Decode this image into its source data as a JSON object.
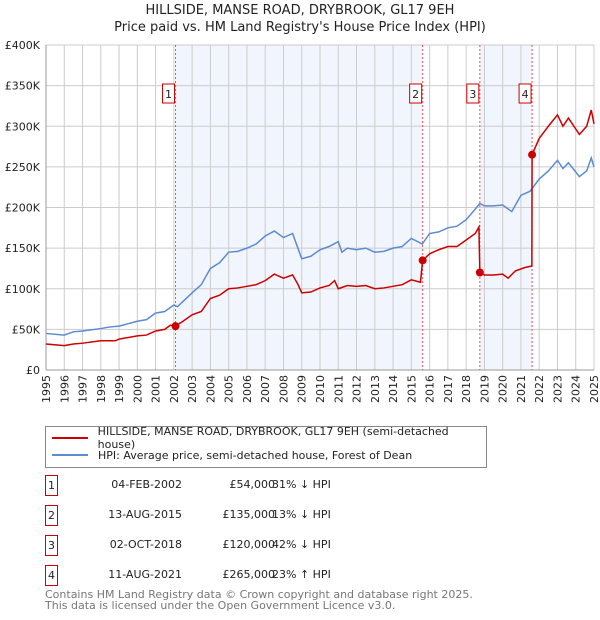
{
  "title": "HILLSIDE, MANSE ROAD, DRYBROOK, GL17 9EH",
  "subtitle": "Price paid vs. HM Land Registry's House Price Index (HPI)",
  "chart_data": {
    "type": "line",
    "xlim": [
      1995,
      2025
    ],
    "ylim": [
      0,
      400000
    ],
    "yticks": [
      0,
      50000,
      100000,
      150000,
      200000,
      250000,
      300000,
      350000,
      400000
    ],
    "ytick_labels": [
      "£0",
      "£50K",
      "£100K",
      "£150K",
      "£200K",
      "£250K",
      "£300K",
      "£350K",
      "£400K"
    ],
    "xticks": [
      "1995",
      "1996",
      "1997",
      "1998",
      "1999",
      "2000",
      "2001",
      "2002",
      "2003",
      "2004",
      "2005",
      "2006",
      "2007",
      "2008",
      "2009",
      "2010",
      "2011",
      "2012",
      "2013",
      "2014",
      "2015",
      "2016",
      "2017",
      "2018",
      "2019",
      "2020",
      "2021",
      "2022",
      "2023",
      "2024",
      "2025"
    ],
    "grid": true,
    "shaded_ranges": [
      [
        2002.09,
        2015.62
      ],
      [
        2018.75,
        2021.61
      ]
    ],
    "series": [
      {
        "name": "HILLSIDE, MANSE ROAD, DRYBROOK, GL17 9EH (semi-detached house)",
        "color": "#cc0000",
        "points": [
          [
            1995,
            32000
          ],
          [
            1996,
            30000
          ],
          [
            1996.5,
            32000
          ],
          [
            1997,
            33000
          ],
          [
            1998,
            36000
          ],
          [
            1998.8,
            36000
          ],
          [
            1999,
            38000
          ],
          [
            2000,
            42000
          ],
          [
            2000.5,
            43000
          ],
          [
            2001,
            48000
          ],
          [
            2001.5,
            50000
          ],
          [
            2001.8,
            55000
          ],
          [
            2002.09,
            54000
          ],
          [
            2002.5,
            60000
          ],
          [
            2003,
            68000
          ],
          [
            2003.5,
            72000
          ],
          [
            2004,
            88000
          ],
          [
            2004.5,
            92000
          ],
          [
            2005,
            100000
          ],
          [
            2005.5,
            101000
          ],
          [
            2006,
            103000
          ],
          [
            2006.5,
            105000
          ],
          [
            2007,
            110000
          ],
          [
            2007.5,
            118000
          ],
          [
            2008,
            113000
          ],
          [
            2008.5,
            117000
          ],
          [
            2008.8,
            105000
          ],
          [
            2009,
            95000
          ],
          [
            2009.5,
            96000
          ],
          [
            2010,
            101000
          ],
          [
            2010.5,
            104000
          ],
          [
            2010.8,
            110000
          ],
          [
            2011,
            100000
          ],
          [
            2011.5,
            104000
          ],
          [
            2012,
            103000
          ],
          [
            2012.5,
            104000
          ],
          [
            2013,
            100000
          ],
          [
            2013.5,
            101000
          ],
          [
            2014,
            103000
          ],
          [
            2014.5,
            105000
          ],
          [
            2015,
            111000
          ],
          [
            2015.5,
            108000
          ],
          [
            2015.62,
            135000
          ],
          [
            2016,
            143000
          ],
          [
            2016.5,
            148000
          ],
          [
            2017,
            152000
          ],
          [
            2017.5,
            152000
          ],
          [
            2018,
            160000
          ],
          [
            2018.5,
            168000
          ],
          [
            2018.7,
            176000
          ],
          [
            2018.75,
            120000
          ],
          [
            2019,
            117000
          ],
          [
            2019.5,
            117000
          ],
          [
            2020,
            118000
          ],
          [
            2020.3,
            113000
          ],
          [
            2020.7,
            122000
          ],
          [
            2021.2,
            126000
          ],
          [
            2021.6,
            128000
          ],
          [
            2021.61,
            265000
          ],
          [
            2022,
            285000
          ],
          [
            2022.5,
            300000
          ],
          [
            2023,
            314000
          ],
          [
            2023.3,
            300000
          ],
          [
            2023.6,
            310000
          ],
          [
            2024.2,
            290000
          ],
          [
            2024.6,
            300000
          ],
          [
            2024.85,
            320000
          ],
          [
            2025,
            303000
          ]
        ]
      },
      {
        "name": "HPI: Average price, semi-detached house, Forest of Dean",
        "color": "#5b8bd0",
        "points": [
          [
            1995,
            45000
          ],
          [
            1996,
            43000
          ],
          [
            1996.5,
            47000
          ],
          [
            1997,
            48000
          ],
          [
            1998,
            51000
          ],
          [
            1998.5,
            53000
          ],
          [
            1999,
            54000
          ],
          [
            2000,
            60000
          ],
          [
            2000.5,
            62000
          ],
          [
            2001,
            70000
          ],
          [
            2001.5,
            72000
          ],
          [
            2002,
            80000
          ],
          [
            2002.2,
            78000
          ],
          [
            2003,
            95000
          ],
          [
            2003.5,
            105000
          ],
          [
            2004,
            125000
          ],
          [
            2004.5,
            132000
          ],
          [
            2005,
            145000
          ],
          [
            2005.5,
            146000
          ],
          [
            2006,
            150000
          ],
          [
            2006.5,
            155000
          ],
          [
            2007,
            165000
          ],
          [
            2007.5,
            171000
          ],
          [
            2008,
            163000
          ],
          [
            2008.5,
            168000
          ],
          [
            2009,
            137000
          ],
          [
            2009.5,
            140000
          ],
          [
            2010,
            148000
          ],
          [
            2010.5,
            152000
          ],
          [
            2011,
            158000
          ],
          [
            2011.2,
            145000
          ],
          [
            2011.5,
            150000
          ],
          [
            2012,
            148000
          ],
          [
            2012.5,
            150000
          ],
          [
            2013,
            145000
          ],
          [
            2013.5,
            146000
          ],
          [
            2014,
            150000
          ],
          [
            2014.5,
            152000
          ],
          [
            2015,
            162000
          ],
          [
            2015.6,
            155000
          ],
          [
            2016,
            168000
          ],
          [
            2016.5,
            170000
          ],
          [
            2017,
            175000
          ],
          [
            2017.5,
            177000
          ],
          [
            2018,
            185000
          ],
          [
            2018.5,
            198000
          ],
          [
            2018.75,
            205000
          ],
          [
            2019,
            202000
          ],
          [
            2019.5,
            202000
          ],
          [
            2020,
            203000
          ],
          [
            2020.5,
            195000
          ],
          [
            2021,
            215000
          ],
          [
            2021.5,
            220000
          ],
          [
            2022,
            235000
          ],
          [
            2022.5,
            245000
          ],
          [
            2023,
            258000
          ],
          [
            2023.3,
            248000
          ],
          [
            2023.6,
            255000
          ],
          [
            2024.2,
            238000
          ],
          [
            2024.6,
            245000
          ],
          [
            2024.85,
            261000
          ],
          [
            2025,
            250000
          ]
        ]
      }
    ],
    "sales": [
      {
        "label": "1",
        "year": 2002.09,
        "price": 54000
      },
      {
        "label": "2",
        "year": 2015.62,
        "price": 135000
      },
      {
        "label": "3",
        "year": 2018.75,
        "price": 120000
      },
      {
        "label": "4",
        "year": 2021.61,
        "price": 265000
      }
    ]
  },
  "legend": {
    "red_label": "HILLSIDE, MANSE ROAD, DRYBROOK, GL17 9EH (semi-detached house)",
    "blue_label": "HPI: Average price, semi-detached house, Forest of Dean"
  },
  "table": [
    {
      "num": "1",
      "date": "04-FEB-2002",
      "price": "£54,000",
      "hpi": "31% ↓ HPI"
    },
    {
      "num": "2",
      "date": "13-AUG-2015",
      "price": "£135,000",
      "hpi": "13% ↓ HPI"
    },
    {
      "num": "3",
      "date": "02-OCT-2018",
      "price": "£120,000",
      "hpi": "42% ↓ HPI"
    },
    {
      "num": "4",
      "date": "11-AUG-2021",
      "price": "£265,000",
      "hpi": "23% ↑ HPI"
    }
  ],
  "footer": {
    "line1": "Contains HM Land Registry data © Crown copyright and database right 2025.",
    "line2": "This data is licensed under the Open Government Licence v3.0."
  }
}
